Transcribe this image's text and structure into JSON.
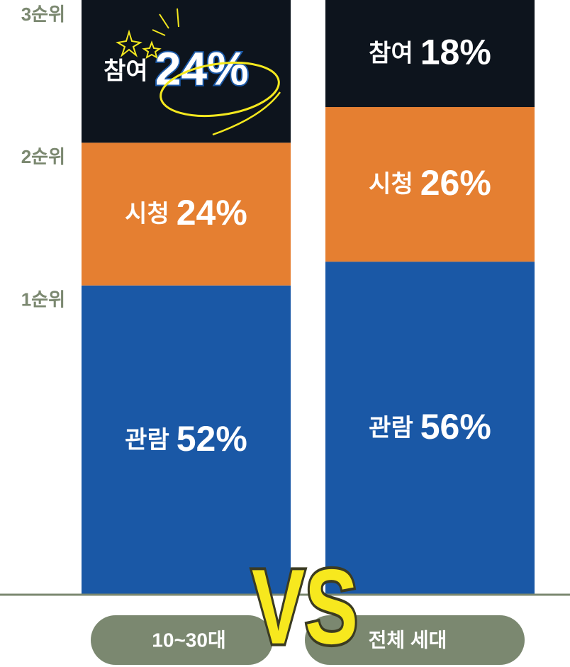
{
  "chart_data": {
    "type": "stacked_bar",
    "categories": [
      "10~30대",
      "전체 세대"
    ],
    "series": [
      {
        "name": "관람",
        "rank": "1순위",
        "color": "#1a58a6",
        "values": [
          52,
          56
        ],
        "value_labels": [
          "52%",
          "56%"
        ]
      },
      {
        "name": "시청",
        "rank": "2순위",
        "color": "#e57f31",
        "values": [
          24,
          26
        ],
        "value_labels": [
          "24%",
          "26%"
        ]
      },
      {
        "name": "참여",
        "rank": "3순위",
        "color": "#0d141d",
        "values": [
          24,
          18
        ],
        "value_labels": [
          "24%",
          "18%"
        ]
      }
    ],
    "ylim": [
      0,
      100
    ],
    "annotation": "VS"
  }
}
